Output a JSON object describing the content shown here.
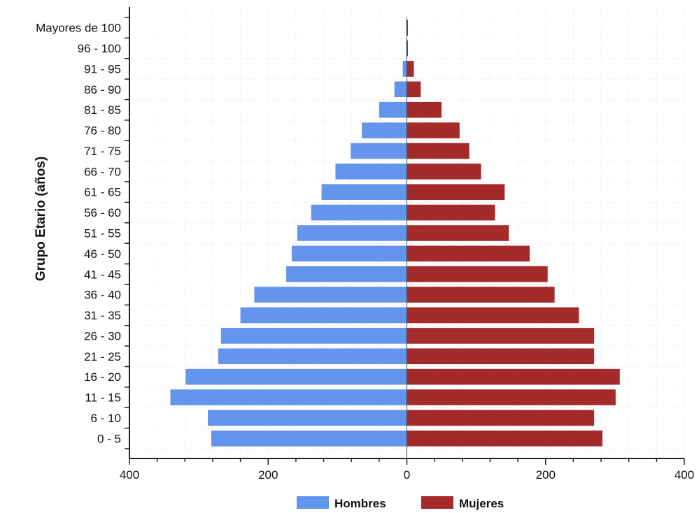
{
  "chart_data": {
    "type": "bar",
    "orientation": "horizontal-pyramid",
    "categories": [
      "0 - 5",
      "6 - 10",
      "11 - 15",
      "16 - 20",
      "21 - 25",
      "26 - 30",
      "31 - 35",
      "36 - 40",
      "41 - 45",
      "46 - 50",
      "51 - 55",
      "56 - 60",
      "61 - 65",
      "66 - 70",
      "71 - 75",
      "76 - 80",
      "81 - 85",
      "86 - 90",
      "91 - 95",
      "96 - 100",
      "Mayores de 100"
    ],
    "series": [
      {
        "name": "Hombres",
        "color": "#6495ED",
        "side": "left",
        "values": [
          282,
          287,
          341,
          319,
          272,
          268,
          240,
          220,
          174,
          166,
          158,
          138,
          123,
          103,
          81,
          65,
          40,
          18,
          6,
          1,
          1
        ]
      },
      {
        "name": "Mujeres",
        "color": "#A52A2A",
        "side": "right",
        "values": [
          282,
          270,
          301,
          307,
          270,
          270,
          248,
          213,
          203,
          177,
          147,
          127,
          141,
          107,
          90,
          76,
          50,
          20,
          10,
          1,
          1
        ]
      }
    ],
    "xlim": [
      -400,
      400
    ],
    "xticks": [
      -400,
      -200,
      0,
      200,
      400
    ],
    "xtick_labels": [
      "400",
      "200",
      "0",
      "200",
      "400"
    ],
    "ylabel": "Grupo Etario (años)",
    "xlabel": "",
    "grid": true,
    "legend_position": "bottom"
  }
}
